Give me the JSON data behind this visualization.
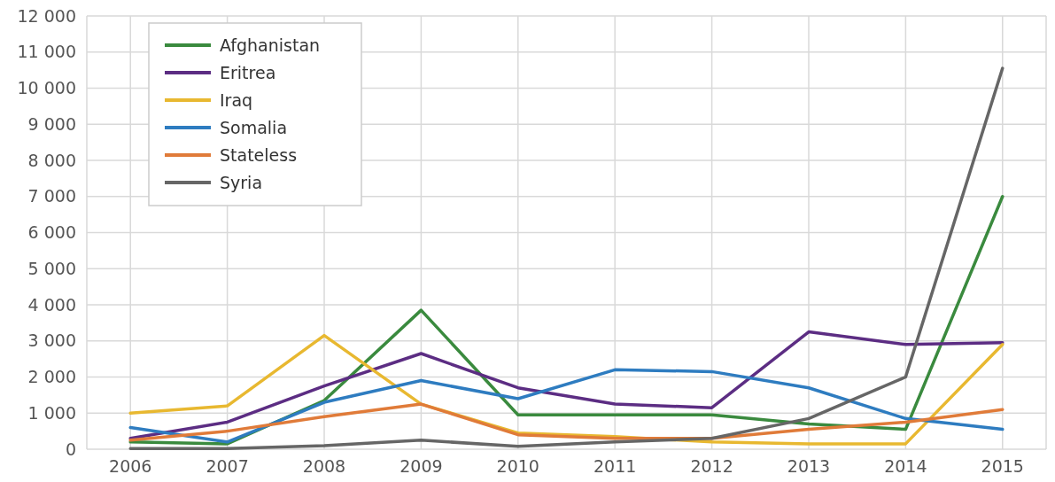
{
  "chart_data": {
    "type": "line",
    "categories": [
      "2006",
      "2007",
      "2008",
      "2009",
      "2010",
      "2011",
      "2012",
      "2013",
      "2014",
      "2015"
    ],
    "series": [
      {
        "name": "Afghanistan",
        "color": "#3a8a3e",
        "values": [
          200,
          150,
          1350,
          3850,
          950,
          950,
          950,
          700,
          550,
          7000
        ]
      },
      {
        "name": "Eritrea",
        "color": "#5c2d83",
        "values": [
          300,
          750,
          1750,
          2650,
          1700,
          1250,
          1150,
          3250,
          2900,
          2950
        ]
      },
      {
        "name": "Iraq",
        "color": "#e8b830",
        "values": [
          1000,
          1200,
          3150,
          1250,
          450,
          350,
          200,
          150,
          150,
          2900
        ]
      },
      {
        "name": "Somalia",
        "color": "#2e7cc0",
        "values": [
          600,
          200,
          1300,
          1900,
          1400,
          2200,
          2150,
          1700,
          850,
          550
        ]
      },
      {
        "name": "Stateless",
        "color": "#e07b39",
        "values": [
          250,
          500,
          900,
          1250,
          400,
          300,
          300,
          550,
          750,
          1100
        ]
      },
      {
        "name": "Syria",
        "color": "#666666",
        "values": [
          20,
          20,
          100,
          250,
          80,
          200,
          300,
          850,
          2000,
          10550
        ]
      }
    ],
    "ylim": [
      0,
      12000
    ],
    "yticks": [
      0,
      {
        "value": 1000,
        "label": "1 000"
      },
      {
        "value": 2000,
        "label": "2 000"
      },
      {
        "value": 3000,
        "label": "3 000"
      },
      {
        "value": 4000,
        "label": "4 000"
      },
      {
        "value": 5000,
        "label": "5 000"
      },
      {
        "value": 6000,
        "label": "6 000"
      },
      {
        "value": 7000,
        "label": "7 000"
      },
      {
        "value": 8000,
        "label": "8 000"
      },
      {
        "value": 9000,
        "label": "9 000"
      },
      {
        "value": 10000,
        "label": "10 000"
      },
      {
        "value": 11000,
        "label": "11 000"
      },
      {
        "value": 12000,
        "label": "12 000"
      }
    ],
    "grid": true,
    "legend": "top left",
    "marker": "none",
    "line_style": "solid"
  }
}
